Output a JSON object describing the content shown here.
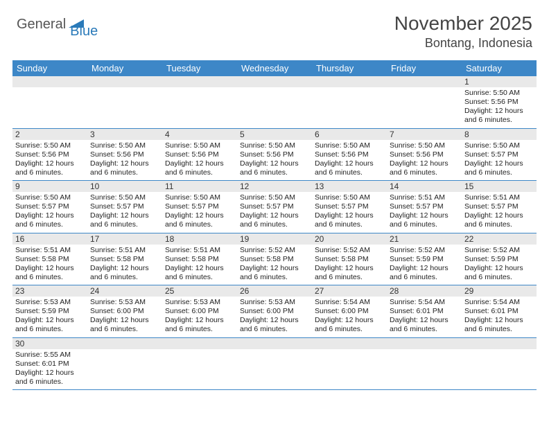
{
  "logo": {
    "text1": "General",
    "text2": "Blue"
  },
  "title": {
    "month": "November 2025",
    "location": "Bontang, Indonesia"
  },
  "colors": {
    "header_bg": "#3d87c7",
    "header_text": "#ffffff",
    "daynum_bg": "#e9e9e9",
    "row_border": "#3d87c7",
    "logo_blue": "#2a7ab9",
    "body_text": "#333333"
  },
  "fonts": {
    "title_pt": 28,
    "location_pt": 18,
    "dayhead_pt": 13,
    "daynum_pt": 12,
    "body_pt": 10.5
  },
  "day_headers": [
    "Sunday",
    "Monday",
    "Tuesday",
    "Wednesday",
    "Thursday",
    "Friday",
    "Saturday"
  ],
  "weeks": [
    [
      {
        "blank": true
      },
      {
        "blank": true
      },
      {
        "blank": true
      },
      {
        "blank": true
      },
      {
        "blank": true
      },
      {
        "blank": true
      },
      {
        "num": "1",
        "sunrise": "5:50 AM",
        "sunset": "5:56 PM",
        "daylight": "12 hours and 6 minutes."
      }
    ],
    [
      {
        "num": "2",
        "sunrise": "5:50 AM",
        "sunset": "5:56 PM",
        "daylight": "12 hours and 6 minutes."
      },
      {
        "num": "3",
        "sunrise": "5:50 AM",
        "sunset": "5:56 PM",
        "daylight": "12 hours and 6 minutes."
      },
      {
        "num": "4",
        "sunrise": "5:50 AM",
        "sunset": "5:56 PM",
        "daylight": "12 hours and 6 minutes."
      },
      {
        "num": "5",
        "sunrise": "5:50 AM",
        "sunset": "5:56 PM",
        "daylight": "12 hours and 6 minutes."
      },
      {
        "num": "6",
        "sunrise": "5:50 AM",
        "sunset": "5:56 PM",
        "daylight": "12 hours and 6 minutes."
      },
      {
        "num": "7",
        "sunrise": "5:50 AM",
        "sunset": "5:56 PM",
        "daylight": "12 hours and 6 minutes."
      },
      {
        "num": "8",
        "sunrise": "5:50 AM",
        "sunset": "5:57 PM",
        "daylight": "12 hours and 6 minutes."
      }
    ],
    [
      {
        "num": "9",
        "sunrise": "5:50 AM",
        "sunset": "5:57 PM",
        "daylight": "12 hours and 6 minutes."
      },
      {
        "num": "10",
        "sunrise": "5:50 AM",
        "sunset": "5:57 PM",
        "daylight": "12 hours and 6 minutes."
      },
      {
        "num": "11",
        "sunrise": "5:50 AM",
        "sunset": "5:57 PM",
        "daylight": "12 hours and 6 minutes."
      },
      {
        "num": "12",
        "sunrise": "5:50 AM",
        "sunset": "5:57 PM",
        "daylight": "12 hours and 6 minutes."
      },
      {
        "num": "13",
        "sunrise": "5:50 AM",
        "sunset": "5:57 PM",
        "daylight": "12 hours and 6 minutes."
      },
      {
        "num": "14",
        "sunrise": "5:51 AM",
        "sunset": "5:57 PM",
        "daylight": "12 hours and 6 minutes."
      },
      {
        "num": "15",
        "sunrise": "5:51 AM",
        "sunset": "5:57 PM",
        "daylight": "12 hours and 6 minutes."
      }
    ],
    [
      {
        "num": "16",
        "sunrise": "5:51 AM",
        "sunset": "5:58 PM",
        "daylight": "12 hours and 6 minutes."
      },
      {
        "num": "17",
        "sunrise": "5:51 AM",
        "sunset": "5:58 PM",
        "daylight": "12 hours and 6 minutes."
      },
      {
        "num": "18",
        "sunrise": "5:51 AM",
        "sunset": "5:58 PM",
        "daylight": "12 hours and 6 minutes."
      },
      {
        "num": "19",
        "sunrise": "5:52 AM",
        "sunset": "5:58 PM",
        "daylight": "12 hours and 6 minutes."
      },
      {
        "num": "20",
        "sunrise": "5:52 AM",
        "sunset": "5:58 PM",
        "daylight": "12 hours and 6 minutes."
      },
      {
        "num": "21",
        "sunrise": "5:52 AM",
        "sunset": "5:59 PM",
        "daylight": "12 hours and 6 minutes."
      },
      {
        "num": "22",
        "sunrise": "5:52 AM",
        "sunset": "5:59 PM",
        "daylight": "12 hours and 6 minutes."
      }
    ],
    [
      {
        "num": "23",
        "sunrise": "5:53 AM",
        "sunset": "5:59 PM",
        "daylight": "12 hours and 6 minutes."
      },
      {
        "num": "24",
        "sunrise": "5:53 AM",
        "sunset": "6:00 PM",
        "daylight": "12 hours and 6 minutes."
      },
      {
        "num": "25",
        "sunrise": "5:53 AM",
        "sunset": "6:00 PM",
        "daylight": "12 hours and 6 minutes."
      },
      {
        "num": "26",
        "sunrise": "5:53 AM",
        "sunset": "6:00 PM",
        "daylight": "12 hours and 6 minutes."
      },
      {
        "num": "27",
        "sunrise": "5:54 AM",
        "sunset": "6:00 PM",
        "daylight": "12 hours and 6 minutes."
      },
      {
        "num": "28",
        "sunrise": "5:54 AM",
        "sunset": "6:01 PM",
        "daylight": "12 hours and 6 minutes."
      },
      {
        "num": "29",
        "sunrise": "5:54 AM",
        "sunset": "6:01 PM",
        "daylight": "12 hours and 6 minutes."
      }
    ],
    [
      {
        "num": "30",
        "sunrise": "5:55 AM",
        "sunset": "6:01 PM",
        "daylight": "12 hours and 6 minutes."
      },
      {
        "blank": true
      },
      {
        "blank": true
      },
      {
        "blank": true
      },
      {
        "blank": true
      },
      {
        "blank": true
      },
      {
        "blank": true
      }
    ]
  ],
  "labels": {
    "sunrise": "Sunrise:",
    "sunset": "Sunset:",
    "daylight": "Daylight:"
  }
}
